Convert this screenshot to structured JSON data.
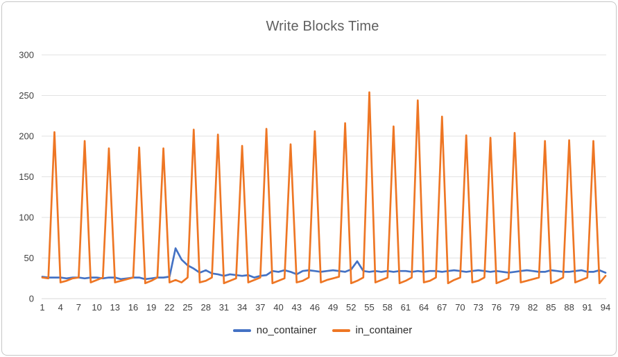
{
  "chart_data": {
    "type": "line",
    "title": "Write Blocks Time",
    "xlabel": "",
    "ylabel": "",
    "x_start": 1,
    "x_end": 94,
    "x_tick_labels": [
      1,
      4,
      7,
      10,
      13,
      16,
      19,
      22,
      25,
      28,
      31,
      34,
      37,
      40,
      43,
      46,
      49,
      52,
      55,
      58,
      61,
      64,
      67,
      70,
      73,
      76,
      79,
      82,
      85,
      88,
      91,
      94
    ],
    "y_ticks": [
      0,
      50,
      100,
      150,
      200,
      250,
      300
    ],
    "ylim": [
      0,
      300
    ],
    "grid": true,
    "legend_position": "bottom",
    "series": [
      {
        "name": "no_container",
        "color": "#4472c4",
        "values": [
          27,
          26,
          26,
          26,
          25,
          26,
          26,
          25,
          26,
          26,
          25,
          26,
          26,
          24,
          25,
          26,
          26,
          24,
          25,
          26,
          26,
          27,
          62,
          48,
          41,
          37,
          32,
          35,
          31,
          30,
          28,
          30,
          29,
          28,
          29,
          26,
          28,
          29,
          34,
          33,
          35,
          33,
          30,
          34,
          35,
          34,
          33,
          34,
          35,
          34,
          33,
          36,
          46,
          34,
          33,
          34,
          33,
          34,
          33,
          34,
          34,
          33,
          34,
          33,
          34,
          34,
          33,
          34,
          35,
          34,
          33,
          34,
          35,
          34,
          33,
          34,
          33,
          32,
          33,
          34,
          35,
          34,
          33,
          33,
          35,
          34,
          33,
          33,
          34,
          35,
          33,
          33,
          35,
          32
        ]
      },
      {
        "name": "in_container",
        "color": "#ee7624",
        "values": [
          26,
          25,
          205,
          20,
          22,
          25,
          26,
          194,
          20,
          23,
          26,
          185,
          20,
          22,
          24,
          26,
          186,
          19,
          22,
          26,
          185,
          20,
          23,
          20,
          26,
          208,
          20,
          22,
          26,
          202,
          19,
          22,
          25,
          188,
          20,
          23,
          26,
          209,
          19,
          22,
          25,
          190,
          20,
          22,
          26,
          206,
          20,
          23,
          25,
          27,
          216,
          19,
          22,
          26,
          254,
          20,
          23,
          26,
          212,
          19,
          22,
          26,
          244,
          20,
          22,
          26,
          224,
          19,
          23,
          26,
          201,
          20,
          22,
          26,
          198,
          19,
          22,
          25,
          204,
          20,
          22,
          24,
          26,
          194,
          19,
          22,
          26,
          195,
          20,
          23,
          26,
          194,
          19,
          28
        ]
      }
    ]
  },
  "colors": {
    "grid": "#e2e2e2",
    "axis_zero_line": "#dadada",
    "axis_text": "#404040",
    "title_text": "#5f5f5f",
    "card_border": "#c6c6c6",
    "background": "#ffffff"
  }
}
